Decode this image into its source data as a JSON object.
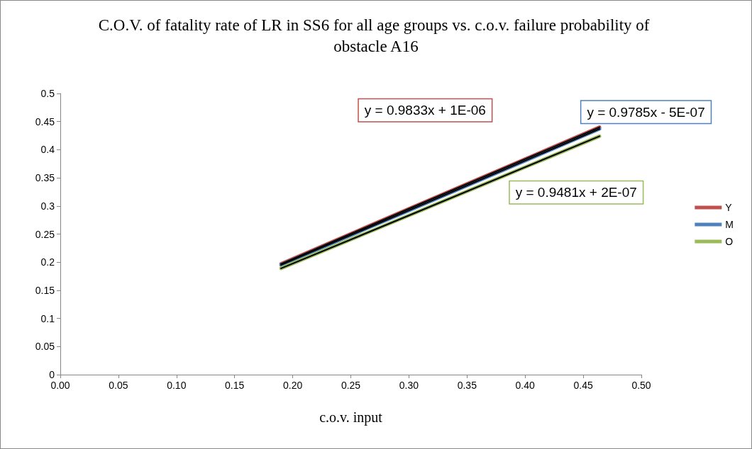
{
  "chart_data": {
    "type": "line",
    "title": "C.O.V. of fatality rate of LR in SS6 for all age groups vs. c.o.v. failure probability of obstacle A16",
    "xlabel": "c.o.v. input",
    "xlim": [
      0,
      0.5
    ],
    "xticks": [
      {
        "value": 0,
        "label": "0.00"
      },
      {
        "value": 0.05,
        "label": "0.05"
      },
      {
        "value": 0.1,
        "label": "0.10"
      },
      {
        "value": 0.15,
        "label": "0.15"
      },
      {
        "value": 0.2,
        "label": "0.20"
      },
      {
        "value": 0.25,
        "label": "0.25"
      },
      {
        "value": 0.3,
        "label": "0.30"
      },
      {
        "value": 0.35,
        "label": "0.35"
      },
      {
        "value": 0.4,
        "label": "0.40"
      },
      {
        "value": 0.45,
        "label": "0.45"
      },
      {
        "value": 0.5,
        "label": "0.50"
      }
    ],
    "ylim": [
      0,
      0.5
    ],
    "yticks": [
      0,
      0.05,
      0.1,
      0.15,
      0.2,
      0.25,
      0.3,
      0.35,
      0.4,
      0.45,
      0.5
    ],
    "grid": false,
    "legend": "right",
    "marker": "none",
    "line_style": "solid",
    "series": [
      {
        "name": "Y",
        "color": "#c0504d",
        "x": [
          0.19,
          0.3,
          0.464
        ],
        "values": [
          0.197,
          0.295,
          0.44
        ]
      },
      {
        "name": "M",
        "color": "#4f81bd",
        "x": [
          0.19,
          0.3,
          0.464
        ],
        "values": [
          0.195,
          0.292,
          0.437
        ]
      },
      {
        "name": "O",
        "color": "#9bbb59",
        "x": [
          0.19,
          0.3,
          0.464
        ],
        "values": [
          0.189,
          0.283,
          0.424
        ]
      },
      {
        "color": "#000000",
        "x": [
          0.19,
          0.3,
          0.464
        ],
        "values": [
          0.197,
          0.295,
          0.44
        ]
      },
      {
        "color": "#000000",
        "x": [
          0.19,
          0.3,
          0.464
        ],
        "values": [
          0.195,
          0.292,
          0.437
        ]
      },
      {
        "color": "#000000",
        "x": [
          0.19,
          0.3,
          0.464
        ],
        "values": [
          0.189,
          0.283,
          0.424
        ]
      }
    ],
    "annotations": [
      "y = 0.9833x + 1E-06",
      "y = 0.9785x - 5E-07",
      "y = 0.9481x + 2E-07"
    ]
  }
}
